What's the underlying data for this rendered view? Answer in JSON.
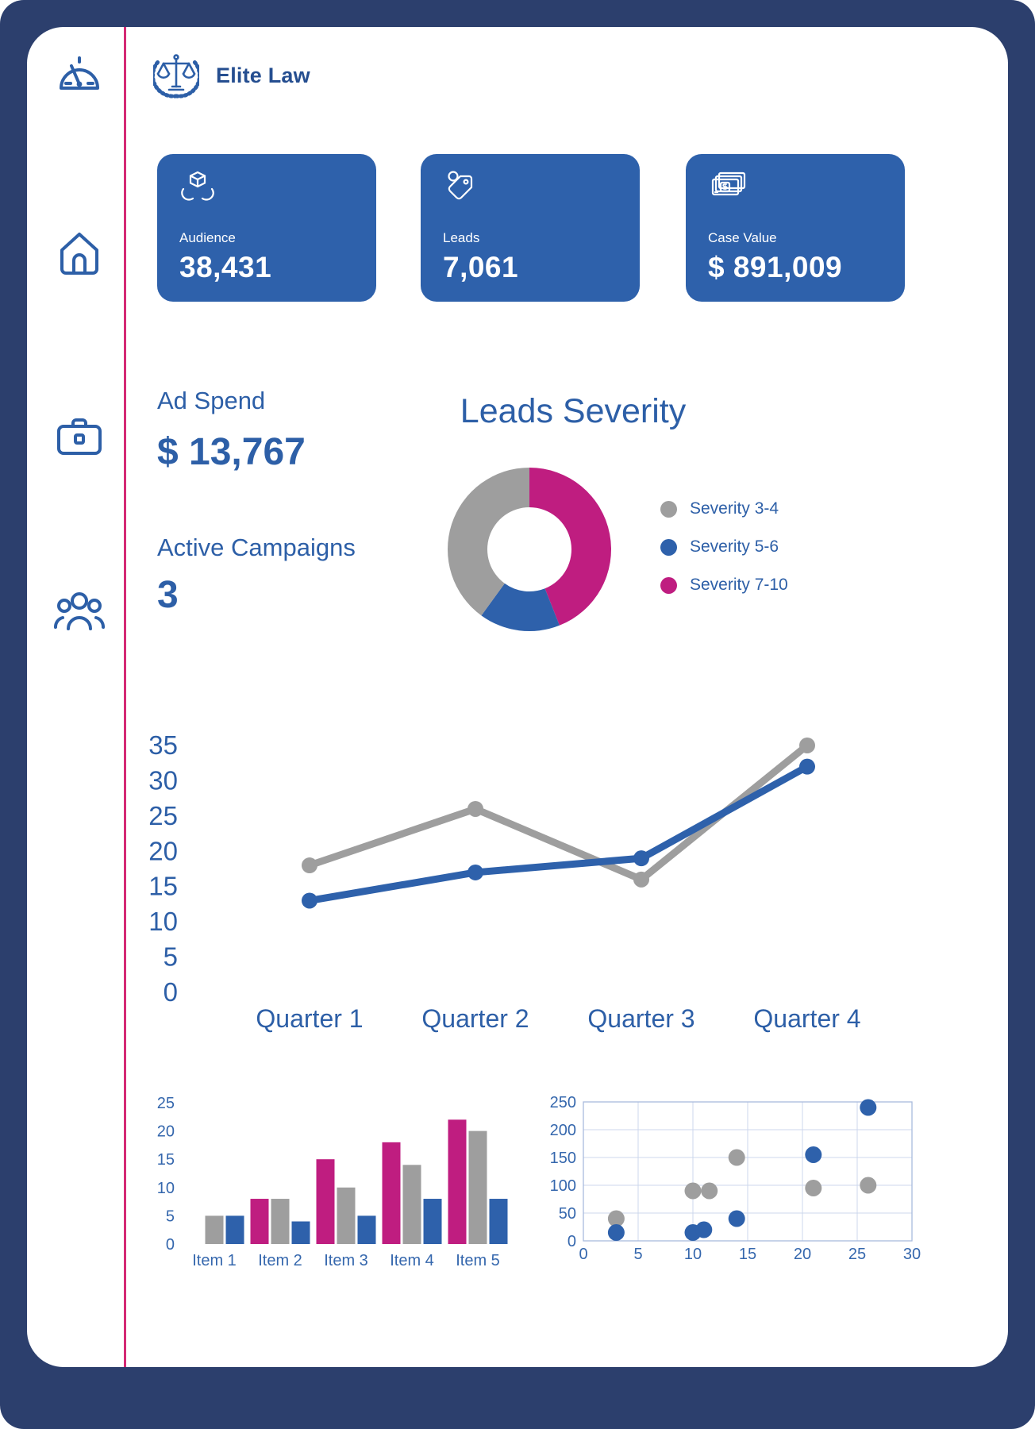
{
  "app": {
    "brand": "Elite Law"
  },
  "colors": {
    "navy_frame": "#2c3f6d",
    "divider_pink": "#d42a74",
    "primary_blue": "#2e61ab",
    "text_blue": "#2d5fa7",
    "tick_blue": "#3567ad",
    "magenta": "#bf1d80",
    "gray": "#9e9e9e"
  },
  "sidebar": {
    "items": [
      {
        "icon": "gauge"
      },
      {
        "icon": "home"
      },
      {
        "icon": "briefcase"
      },
      {
        "icon": "users"
      }
    ]
  },
  "kpis": [
    {
      "icon": "hands-box",
      "label": "Audience",
      "value": "38,431"
    },
    {
      "icon": "tag",
      "label": "Leads",
      "value": "7,061"
    },
    {
      "icon": "banknotes",
      "label": "Case Value",
      "value": "$ 891,009"
    }
  ],
  "stats": [
    {
      "label": "Ad Spend",
      "value": "$ 13,767"
    },
    {
      "label": "Active Campaigns",
      "value": "3"
    }
  ],
  "chart_data": [
    {
      "type": "pie",
      "title": "Leads Severity",
      "donut": true,
      "slices": [
        {
          "label": "Severity 7-10",
          "value": 44,
          "color": "#bf1d80"
        },
        {
          "label": "Severity 5-6",
          "value": 16,
          "color": "#2e61ab"
        },
        {
          "label": "Severity 3-4",
          "value": 40,
          "color": "#9e9e9e"
        }
      ],
      "legend": [
        {
          "label": "Severity 3-4",
          "color": "#9e9e9e"
        },
        {
          "label": "Severity 5-6",
          "color": "#2e61ab"
        },
        {
          "label": "Severity 7-10",
          "color": "#bf1d80"
        }
      ],
      "legend_position": "right"
    },
    {
      "type": "line",
      "categories": [
        "Quarter 1",
        "Quarter 2",
        "Quarter 3",
        "Quarter 4"
      ],
      "series": [
        {
          "name": "gray",
          "color": "#9e9e9e",
          "values": [
            18,
            26,
            16,
            35
          ]
        },
        {
          "name": "blue",
          "color": "#2e61ab",
          "values": [
            13,
            17,
            19,
            32
          ]
        }
      ],
      "ylim": [
        0,
        35
      ],
      "yticks": [
        0,
        5,
        10,
        15,
        20,
        25,
        30,
        35
      ],
      "grid": false,
      "legend": "none"
    },
    {
      "type": "bar",
      "categories": [
        "Item 1",
        "Item 2",
        "Item 3",
        "Item 4",
        "Item 5"
      ],
      "series": [
        {
          "name": "magenta",
          "color": "#bf1d80",
          "values": [
            0,
            8,
            15,
            18,
            22
          ]
        },
        {
          "name": "gray",
          "color": "#9e9e9e",
          "values": [
            5,
            8,
            10,
            14,
            20
          ]
        },
        {
          "name": "blue",
          "color": "#2e61ab",
          "values": [
            5,
            4,
            5,
            8,
            8
          ]
        }
      ],
      "ylim": [
        0,
        25
      ],
      "yticks": [
        0,
        5,
        10,
        15,
        20,
        25
      ],
      "grid": false
    },
    {
      "type": "scatter",
      "xlim": [
        0,
        30
      ],
      "ylim": [
        0,
        250
      ],
      "xticks": [
        0,
        5,
        10,
        15,
        20,
        25,
        30
      ],
      "yticks": [
        0,
        50,
        100,
        150,
        200,
        250
      ],
      "grid": true,
      "series": [
        {
          "name": "gray",
          "color": "#9e9e9e",
          "points": [
            [
              3,
              40
            ],
            [
              10,
              90
            ],
            [
              11.5,
              90
            ],
            [
              14,
              150
            ],
            [
              21,
              95
            ],
            [
              26,
              100
            ]
          ]
        },
        {
          "name": "blue",
          "color": "#2e61ab",
          "points": [
            [
              3,
              15
            ],
            [
              10,
              15
            ],
            [
              11,
              20
            ],
            [
              14,
              40
            ],
            [
              21,
              155
            ],
            [
              26,
              240
            ]
          ]
        }
      ]
    }
  ]
}
